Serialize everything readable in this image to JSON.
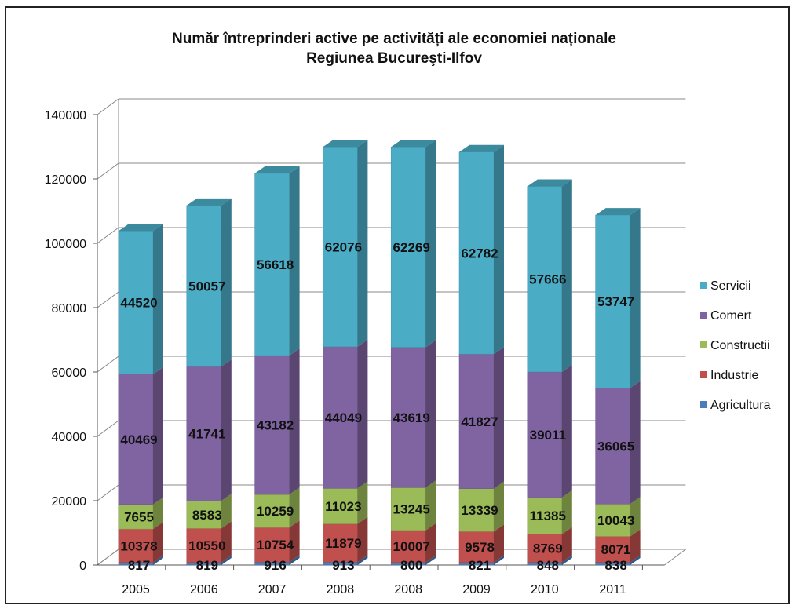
{
  "chart_data": {
    "type": "bar",
    "stacked": true,
    "three_d": true,
    "title": "Număr întreprinderi active pe activități ale economiei naționale",
    "subtitle": "Regiunea Bucureşti-Ilfov",
    "categories": [
      "2005",
      "2006",
      "2007",
      "2008",
      "2008",
      "2009",
      "2010",
      "2011"
    ],
    "ylim": [
      0,
      140000
    ],
    "yticks": [
      "0",
      "20000",
      "40000",
      "60000",
      "80000",
      "100000",
      "120000",
      "140000"
    ],
    "grid": true,
    "legend_position": "right",
    "series": [
      {
        "name": "Agricultura",
        "color": "#4a7ebb",
        "values": [
          817,
          819,
          916,
          913,
          800,
          821,
          848,
          838
        ]
      },
      {
        "name": "Industrie",
        "color": "#c0504d",
        "values": [
          10378,
          10550,
          10754,
          11879,
          10007,
          9578,
          8769,
          8071
        ]
      },
      {
        "name": "Constructii",
        "color": "#9bbb59",
        "values": [
          7655,
          8583,
          10259,
          11023,
          13245,
          13339,
          11385,
          10043
        ]
      },
      {
        "name": "Comert",
        "color": "#8064a2",
        "values": [
          40469,
          41741,
          43182,
          44049,
          43619,
          41827,
          39011,
          36065
        ]
      },
      {
        "name": "Servicii",
        "color": "#4bacc6",
        "values": [
          44520,
          50057,
          56618,
          62076,
          62269,
          62782,
          57666,
          53747
        ]
      }
    ],
    "legend_order": [
      "Servicii",
      "Comert",
      "Constructii",
      "Industrie",
      "Agricultura"
    ]
  }
}
